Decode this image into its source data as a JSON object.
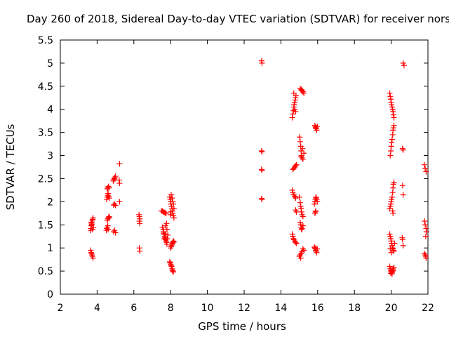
{
  "chart_data": {
    "type": "scatter",
    "title": "Day 260 of 2018, Sidereal Day-to-day VTEC variation (SDTVAR) for receiver nors",
    "xlabel": "GPS time / hours",
    "ylabel": "SDTVAR / TECUs",
    "xlim": [
      2,
      22
    ],
    "ylim": [
      0,
      5.5
    ],
    "xticks": [
      2,
      4,
      6,
      8,
      10,
      12,
      14,
      16,
      18,
      20,
      22
    ],
    "yticks": [
      0,
      0.5,
      1,
      1.5,
      2,
      2.5,
      3,
      3.5,
      4,
      4.5,
      5,
      5.5
    ],
    "xtick_labels": [
      "2",
      "4",
      "6",
      "8",
      "10",
      "12",
      "14",
      "16",
      "18",
      "20",
      "22"
    ],
    "ytick_labels": [
      "0",
      "0.5",
      "1",
      "1.5",
      "2",
      "2.5",
      "3",
      "3.5",
      "4",
      "4.5",
      "5",
      "5.5"
    ],
    "marker": "+",
    "marker_color": "#ff0000",
    "grid": false,
    "series": [
      {
        "name": "SDTVAR",
        "color": "#ff0000",
        "points": [
          [
            3.65,
            1.38
          ],
          [
            3.66,
            1.42
          ],
          [
            3.68,
            1.48
          ],
          [
            3.7,
            1.52
          ],
          [
            3.72,
            1.56
          ],
          [
            3.74,
            1.6
          ],
          [
            3.76,
            1.62
          ],
          [
            3.78,
            1.65
          ],
          [
            3.8,
            1.45
          ],
          [
            3.72,
            1.5
          ],
          [
            3.68,
            1.55
          ],
          [
            3.75,
            1.4
          ],
          [
            3.65,
            0.95
          ],
          [
            3.68,
            0.9
          ],
          [
            3.7,
            0.88
          ],
          [
            3.72,
            0.85
          ],
          [
            3.75,
            0.82
          ],
          [
            3.78,
            0.78
          ],
          [
            4.5,
            1.38
          ],
          [
            4.52,
            1.42
          ],
          [
            4.55,
            1.45
          ],
          [
            4.58,
            1.48
          ],
          [
            4.6,
            1.4
          ],
          [
            4.55,
            1.6
          ],
          [
            4.58,
            1.63
          ],
          [
            4.62,
            1.66
          ],
          [
            4.65,
            1.68
          ],
          [
            4.68,
            1.65
          ],
          [
            4.52,
            2.05
          ],
          [
            4.55,
            2.1
          ],
          [
            4.58,
            2.14
          ],
          [
            4.6,
            2.18
          ],
          [
            4.63,
            2.12
          ],
          [
            4.66,
            2.08
          ],
          [
            4.55,
            2.28
          ],
          [
            4.58,
            2.3
          ],
          [
            4.62,
            2.33
          ],
          [
            4.65,
            2.3
          ],
          [
            4.9,
            1.35
          ],
          [
            4.95,
            1.38
          ],
          [
            5.0,
            1.33
          ],
          [
            4.9,
            1.93
          ],
          [
            4.95,
            1.95
          ],
          [
            5.0,
            1.92
          ],
          [
            4.88,
            2.45
          ],
          [
            4.92,
            2.48
          ],
          [
            4.96,
            2.52
          ],
          [
            5.0,
            2.55
          ],
          [
            4.94,
            2.5
          ],
          [
            5.22,
            2.82
          ],
          [
            5.2,
            2.47
          ],
          [
            5.22,
            2.4
          ],
          [
            5.22,
            2.0
          ],
          [
            6.28,
            1.72
          ],
          [
            6.3,
            1.68
          ],
          [
            6.32,
            1.63
          ],
          [
            6.3,
            1.58
          ],
          [
            6.32,
            1.53
          ],
          [
            6.3,
            1.0
          ],
          [
            6.32,
            0.93
          ],
          [
            7.5,
            1.8
          ],
          [
            7.55,
            1.8
          ],
          [
            7.6,
            1.78
          ],
          [
            7.65,
            1.77
          ],
          [
            7.7,
            1.76
          ],
          [
            7.75,
            1.75
          ],
          [
            7.55,
            1.45
          ],
          [
            7.6,
            1.4
          ],
          [
            7.62,
            1.35
          ],
          [
            7.65,
            1.3
          ],
          [
            7.68,
            1.25
          ],
          [
            7.7,
            1.22
          ],
          [
            7.72,
            1.18
          ],
          [
            7.75,
            1.15
          ],
          [
            7.78,
            1.12
          ],
          [
            7.8,
            1.08
          ],
          [
            7.82,
            1.2
          ],
          [
            7.85,
            1.28
          ],
          [
            7.72,
            1.48
          ],
          [
            7.78,
            1.53
          ],
          [
            7.8,
            1.4
          ],
          [
            7.62,
            1.32
          ],
          [
            7.7,
            1.3
          ],
          [
            7.66,
            1.2
          ],
          [
            7.95,
            2.1
          ],
          [
            7.98,
            2.05
          ],
          [
            8.0,
            2.0
          ],
          [
            8.02,
            1.95
          ],
          [
            8.05,
            1.9
          ],
          [
            8.08,
            1.85
          ],
          [
            8.1,
            1.8
          ],
          [
            8.12,
            1.75
          ],
          [
            8.15,
            1.7
          ],
          [
            8.18,
            1.65
          ],
          [
            8.03,
            2.15
          ],
          [
            8.08,
            2.08
          ],
          [
            8.12,
            2.0
          ],
          [
            8.15,
            1.95
          ],
          [
            8.18,
            1.85
          ],
          [
            8.0,
            1.78
          ],
          [
            7.98,
            1.72
          ],
          [
            8.0,
            1.0
          ],
          [
            8.03,
            1.03
          ],
          [
            8.05,
            1.05
          ],
          [
            8.08,
            1.08
          ],
          [
            8.1,
            1.1
          ],
          [
            8.12,
            1.12
          ],
          [
            8.15,
            1.15
          ],
          [
            8.18,
            1.13
          ],
          [
            7.95,
            0.7
          ],
          [
            7.98,
            0.68
          ],
          [
            8.0,
            0.65
          ],
          [
            8.03,
            0.62
          ],
          [
            8.05,
            0.6
          ],
          [
            8.08,
            0.55
          ],
          [
            8.1,
            0.52
          ],
          [
            8.12,
            0.5
          ],
          [
            8.15,
            0.48
          ],
          [
            12.95,
            5.05
          ],
          [
            12.97,
            5.0
          ],
          [
            12.95,
            3.1
          ],
          [
            12.97,
            3.08
          ],
          [
            12.95,
            2.7
          ],
          [
            12.97,
            2.68
          ],
          [
            12.95,
            2.07
          ],
          [
            12.97,
            2.05
          ],
          [
            14.62,
            3.82
          ],
          [
            14.65,
            3.9
          ],
          [
            14.68,
            3.97
          ],
          [
            14.7,
            4.05
          ],
          [
            14.72,
            4.1
          ],
          [
            14.75,
            4.15
          ],
          [
            14.78,
            4.2
          ],
          [
            14.8,
            4.25
          ],
          [
            14.82,
            4.3
          ],
          [
            14.7,
            4.35
          ],
          [
            14.75,
            4.0
          ],
          [
            14.8,
            3.95
          ],
          [
            14.65,
            2.7
          ],
          [
            14.7,
            2.72
          ],
          [
            14.75,
            2.75
          ],
          [
            14.8,
            2.78
          ],
          [
            14.85,
            2.8
          ],
          [
            14.62,
            2.25
          ],
          [
            14.65,
            2.2
          ],
          [
            14.7,
            2.15
          ],
          [
            14.75,
            2.12
          ],
          [
            14.8,
            2.08
          ],
          [
            14.8,
            1.82
          ],
          [
            14.85,
            1.78
          ],
          [
            14.62,
            1.3
          ],
          [
            14.65,
            1.25
          ],
          [
            14.68,
            1.2
          ],
          [
            14.7,
            1.18
          ],
          [
            14.75,
            1.15
          ],
          [
            14.8,
            1.12
          ],
          [
            14.85,
            1.1
          ],
          [
            15.05,
            4.45
          ],
          [
            15.1,
            4.42
          ],
          [
            15.15,
            4.4
          ],
          [
            15.2,
            4.38
          ],
          [
            15.25,
            4.35
          ],
          [
            15.12,
            4.43
          ],
          [
            15.02,
            3.4
          ],
          [
            15.05,
            3.3
          ],
          [
            15.08,
            3.2
          ],
          [
            15.1,
            3.1
          ],
          [
            15.12,
            3.0
          ],
          [
            15.15,
            2.95
          ],
          [
            15.2,
            2.92
          ],
          [
            15.25,
            3.05
          ],
          [
            15.18,
            3.15
          ],
          [
            15.1,
            2.98
          ],
          [
            15.0,
            2.1
          ],
          [
            15.05,
            1.98
          ],
          [
            15.08,
            1.9
          ],
          [
            15.1,
            1.85
          ],
          [
            15.12,
            1.78
          ],
          [
            15.15,
            1.72
          ],
          [
            15.2,
            1.68
          ],
          [
            15.05,
            1.55
          ],
          [
            15.08,
            1.5
          ],
          [
            15.1,
            1.45
          ],
          [
            15.12,
            1.4
          ],
          [
            15.15,
            1.42
          ],
          [
            15.2,
            1.48
          ],
          [
            15.0,
            0.82
          ],
          [
            15.05,
            0.85
          ],
          [
            15.1,
            0.88
          ],
          [
            15.15,
            0.92
          ],
          [
            15.2,
            0.98
          ],
          [
            15.25,
            0.95
          ],
          [
            15.08,
            0.78
          ],
          [
            15.85,
            3.65
          ],
          [
            15.88,
            3.62
          ],
          [
            15.9,
            3.6
          ],
          [
            15.92,
            3.58
          ],
          [
            15.95,
            3.55
          ],
          [
            15.98,
            3.63
          ],
          [
            15.82,
            1.95
          ],
          [
            15.85,
            2.0
          ],
          [
            15.88,
            2.05
          ],
          [
            15.9,
            2.1
          ],
          [
            15.92,
            2.08
          ],
          [
            15.95,
            2.05
          ],
          [
            15.98,
            2.0
          ],
          [
            15.85,
            1.75
          ],
          [
            15.88,
            1.78
          ],
          [
            15.9,
            1.8
          ],
          [
            15.82,
            1.02
          ],
          [
            15.85,
            1.0
          ],
          [
            15.88,
            0.98
          ],
          [
            15.9,
            0.95
          ],
          [
            15.92,
            0.93
          ],
          [
            15.95,
            0.9
          ],
          [
            15.98,
            0.98
          ],
          [
            19.92,
            4.35
          ],
          [
            19.95,
            4.28
          ],
          [
            19.98,
            4.22
          ],
          [
            20.0,
            4.15
          ],
          [
            20.02,
            4.1
          ],
          [
            20.05,
            4.05
          ],
          [
            20.08,
            4.0
          ],
          [
            20.1,
            3.95
          ],
          [
            20.12,
            3.88
          ],
          [
            20.15,
            3.82
          ],
          [
            19.95,
            3.0
          ],
          [
            19.98,
            3.1
          ],
          [
            20.0,
            3.2
          ],
          [
            20.02,
            3.28
          ],
          [
            20.05,
            3.35
          ],
          [
            20.08,
            3.45
          ],
          [
            20.1,
            3.55
          ],
          [
            20.12,
            3.6
          ],
          [
            20.15,
            3.65
          ],
          [
            19.92,
            1.85
          ],
          [
            19.95,
            1.9
          ],
          [
            19.98,
            1.95
          ],
          [
            20.0,
            2.0
          ],
          [
            20.02,
            2.05
          ],
          [
            20.05,
            2.1
          ],
          [
            20.08,
            2.2
          ],
          [
            20.1,
            2.3
          ],
          [
            20.12,
            2.38
          ],
          [
            20.15,
            2.42
          ],
          [
            20.08,
            1.8
          ],
          [
            20.1,
            1.75
          ],
          [
            19.92,
            1.3
          ],
          [
            19.95,
            1.25
          ],
          [
            19.98,
            1.2
          ],
          [
            20.0,
            1.15
          ],
          [
            20.02,
            1.1
          ],
          [
            20.05,
            1.05
          ],
          [
            20.08,
            1.0
          ],
          [
            20.1,
            0.98
          ],
          [
            20.12,
            0.95
          ],
          [
            20.15,
            0.93
          ],
          [
            20.18,
            1.1
          ],
          [
            19.95,
            0.98
          ],
          [
            20.0,
            0.9
          ],
          [
            19.92,
            0.6
          ],
          [
            19.95,
            0.55
          ],
          [
            19.98,
            0.52
          ],
          [
            20.0,
            0.5
          ],
          [
            20.02,
            0.48
          ],
          [
            20.05,
            0.47
          ],
          [
            20.08,
            0.5
          ],
          [
            20.1,
            0.55
          ],
          [
            20.12,
            0.52
          ],
          [
            20.15,
            0.58
          ],
          [
            19.98,
            0.45
          ],
          [
            20.05,
            0.44
          ],
          [
            20.65,
            5.0
          ],
          [
            20.7,
            4.95
          ],
          [
            20.62,
            3.15
          ],
          [
            20.65,
            3.12
          ],
          [
            20.62,
            2.35
          ],
          [
            20.65,
            2.15
          ],
          [
            20.6,
            1.22
          ],
          [
            20.62,
            1.18
          ],
          [
            20.65,
            1.05
          ],
          [
            21.8,
            2.8
          ],
          [
            21.85,
            2.72
          ],
          [
            21.9,
            2.65
          ],
          [
            21.82,
            1.58
          ],
          [
            21.85,
            1.5
          ],
          [
            21.9,
            1.42
          ],
          [
            21.92,
            1.35
          ],
          [
            21.88,
            1.25
          ],
          [
            21.8,
            0.88
          ],
          [
            21.85,
            0.85
          ],
          [
            21.88,
            0.82
          ],
          [
            21.9,
            0.78
          ]
        ]
      }
    ]
  }
}
